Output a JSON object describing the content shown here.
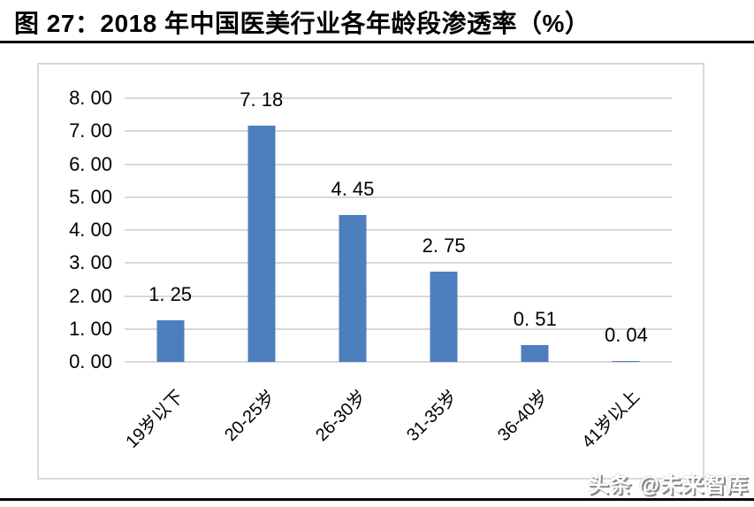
{
  "header": {
    "title": "图 27：2018 年中国医美行业各年龄段渗透率（%）"
  },
  "watermark": {
    "text": "头条 @未来智库"
  },
  "chart_data": {
    "type": "bar",
    "title": "2018 年中国医美行业各年龄段渗透率（%）",
    "categories": [
      "19岁以下",
      "20-25岁",
      "26-30岁",
      "31-35岁",
      "36-40岁",
      "41岁以上"
    ],
    "values": [
      1.25,
      7.18,
      4.45,
      2.75,
      0.51,
      0.04
    ],
    "value_labels": [
      "1. 25",
      "7. 18",
      "4. 45",
      "2. 75",
      "0. 51",
      "0. 04"
    ],
    "xlabel": "",
    "ylabel": "",
    "ylim": [
      0,
      8
    ],
    "y_ticks": [
      0,
      1,
      2,
      3,
      4,
      5,
      6,
      7,
      8
    ],
    "y_tick_labels": [
      "0. 00",
      "1. 00",
      "2. 00",
      "3. 00",
      "4. 00",
      "5. 00",
      "6. 00",
      "7. 00",
      "8. 00"
    ],
    "grid": true,
    "legend": false,
    "bar_color": "#4d7ebe",
    "gridline_color": "#d8d8d8",
    "x_label_rotation_deg": 45
  }
}
